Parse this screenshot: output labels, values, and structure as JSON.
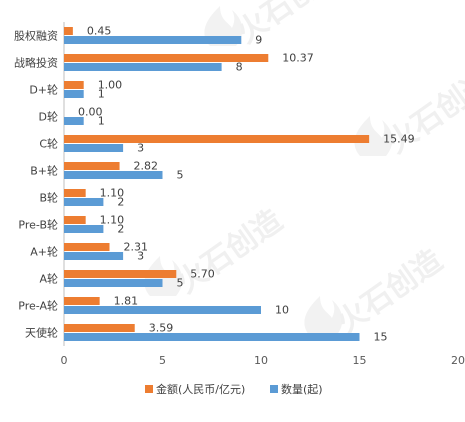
{
  "chart_data": {
    "type": "bar",
    "orientation": "horizontal",
    "categories": [
      "股权融资",
      "战略投资",
      "D+轮",
      "D轮",
      "C轮",
      "B+轮",
      "B轮",
      "Pre-B轮",
      "A+轮",
      "A轮",
      "Pre-A轮",
      "天使轮"
    ],
    "series": [
      {
        "name": "金额(人民币/亿元)",
        "color": "#ED7D31",
        "values": [
          0.45,
          10.37,
          1.0,
          0.0,
          15.49,
          2.82,
          1.1,
          1.1,
          2.31,
          5.7,
          1.81,
          3.59
        ],
        "labels": [
          "0.45",
          "10.37",
          "1.00",
          "0.00",
          "15.49",
          "2.82",
          "1.10",
          "1.10",
          "2.31",
          "5.70",
          "1.81",
          "3.59"
        ]
      },
      {
        "name": "数量(起)",
        "color": "#5B9BD5",
        "values": [
          9,
          8,
          1,
          1,
          3,
          5,
          2,
          2,
          3,
          5,
          10,
          15
        ],
        "labels": [
          "9",
          "8",
          "1",
          "1",
          "3",
          "5",
          "2",
          "2",
          "3",
          "5",
          "10",
          "15"
        ]
      }
    ],
    "xlim": [
      0,
      20
    ],
    "xticks": [
      "0",
      "5",
      "10",
      "15",
      "20"
    ],
    "grid": false,
    "legend_position": "bottom"
  },
  "watermark": {
    "text": "火石创造",
    "icon": "flame-logo-icon"
  }
}
